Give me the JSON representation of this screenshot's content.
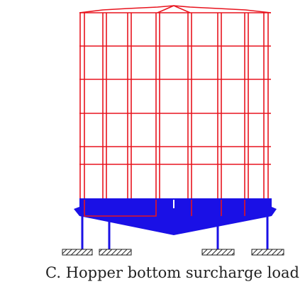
{
  "caption": "C. Hopper bottom surcharge load"
}
